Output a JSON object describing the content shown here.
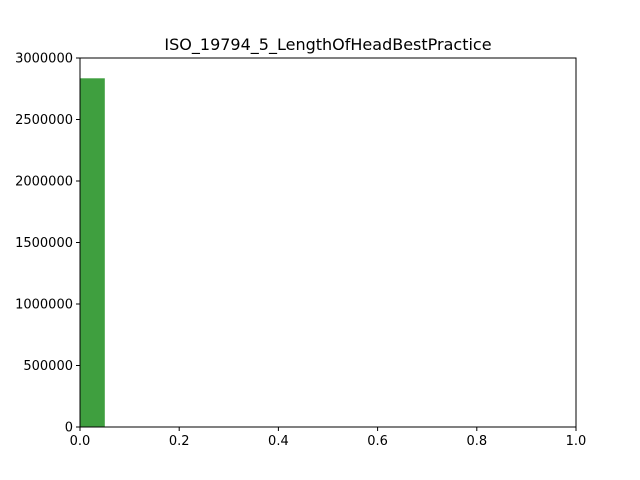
{
  "chart_data": {
    "type": "bar",
    "title": "ISO_19794_5_LengthOfHeadBestPractice",
    "xlabel": "",
    "ylabel": "",
    "xlim": [
      0.0,
      1.0
    ],
    "ylim": [
      0,
      3000000
    ],
    "x_ticks": [
      "0.0",
      "0.2",
      "0.4",
      "0.6",
      "0.8",
      "1.0"
    ],
    "y_ticks": [
      "0",
      "500000",
      "1000000",
      "1500000",
      "2000000",
      "2500000",
      "3000000"
    ],
    "bins": [
      {
        "x_start": 0.0,
        "x_end": 0.05,
        "value": 2835000
      }
    ],
    "bar_color": "#3f9f3f",
    "grid": false,
    "legend": "none"
  }
}
